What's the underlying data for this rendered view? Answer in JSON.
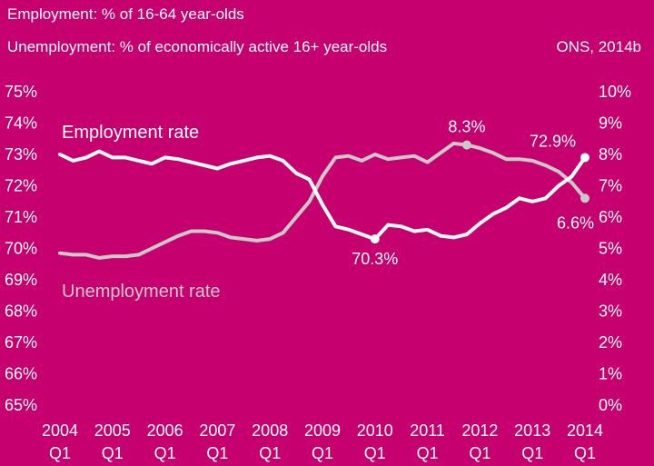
{
  "header": {
    "line1": "Employment: % of 16-64 year-olds",
    "line2": "Unemployment: % of economically active 16+ year-olds",
    "source": "ONS, 2014b"
  },
  "colors": {
    "background": "#c6006f",
    "employment": "#ffffff",
    "unemployment": "#c9c9c9",
    "text": "#ffffff"
  },
  "chart_data": {
    "type": "line",
    "title": "",
    "left_axis": {
      "range": [
        65,
        75
      ],
      "ticks": [
        "65%",
        "66%",
        "67%",
        "68%",
        "69%",
        "70%",
        "71%",
        "72%",
        "73%",
        "74%",
        "75%"
      ]
    },
    "right_axis": {
      "range": [
        0,
        10
      ],
      "ticks": [
        "0%",
        "1%",
        "2%",
        "3%",
        "4%",
        "5%",
        "6%",
        "7%",
        "8%",
        "9%",
        "10%"
      ]
    },
    "x_range": [
      2004.0,
      2014.0
    ],
    "x_ticks": [
      {
        "year": "2004",
        "q": "Q1"
      },
      {
        "year": "2005",
        "q": "Q1"
      },
      {
        "year": "2006",
        "q": "Q1"
      },
      {
        "year": "2007",
        "q": "Q1"
      },
      {
        "year": "2008",
        "q": "Q1"
      },
      {
        "year": "2009",
        "q": "Q1"
      },
      {
        "year": "2010",
        "q": "Q1"
      },
      {
        "year": "2011",
        "q": "Q1"
      },
      {
        "year": "2012",
        "q": "Q1"
      },
      {
        "year": "2013",
        "q": "Q1"
      },
      {
        "year": "2014",
        "q": "Q1"
      }
    ],
    "grid": false,
    "series": [
      {
        "name": "Employment rate",
        "axis": "left",
        "x": [
          2004.0,
          2004.25,
          2004.5,
          2004.75,
          2005.0,
          2005.25,
          2005.5,
          2005.75,
          2006.0,
          2006.25,
          2006.5,
          2006.75,
          2007.0,
          2007.25,
          2007.5,
          2007.75,
          2008.0,
          2008.25,
          2008.5,
          2008.75,
          2009.0,
          2009.25,
          2009.5,
          2009.75,
          2010.0,
          2010.25,
          2010.5,
          2010.75,
          2011.0,
          2011.25,
          2011.5,
          2011.75,
          2012.0,
          2012.25,
          2012.5,
          2012.75,
          2013.0,
          2013.25,
          2013.5,
          2013.75,
          2014.0
        ],
        "values": [
          73.0,
          72.8,
          72.9,
          73.1,
          72.9,
          72.9,
          72.8,
          72.7,
          72.9,
          72.85,
          72.75,
          72.65,
          72.55,
          72.7,
          72.8,
          72.9,
          72.95,
          72.8,
          72.4,
          72.2,
          71.4,
          70.7,
          70.6,
          70.45,
          70.3,
          70.75,
          70.7,
          70.55,
          70.6,
          70.4,
          70.35,
          70.45,
          70.8,
          71.1,
          71.3,
          71.6,
          71.5,
          71.6,
          72.0,
          72.3,
          72.9
        ]
      },
      {
        "name": "Unemployment rate",
        "axis": "right",
        "x": [
          2004.0,
          2004.25,
          2004.5,
          2004.75,
          2005.0,
          2005.25,
          2005.5,
          2005.75,
          2006.0,
          2006.25,
          2006.5,
          2006.75,
          2007.0,
          2007.25,
          2007.5,
          2007.75,
          2008.0,
          2008.25,
          2008.5,
          2008.75,
          2009.0,
          2009.25,
          2009.5,
          2009.75,
          2010.0,
          2010.25,
          2010.5,
          2010.75,
          2011.0,
          2011.25,
          2011.5,
          2011.75,
          2012.0,
          2012.25,
          2012.5,
          2012.75,
          2013.0,
          2013.25,
          2013.5,
          2013.75,
          2014.0
        ],
        "values": [
          4.85,
          4.8,
          4.8,
          4.7,
          4.75,
          4.75,
          4.8,
          5.0,
          5.2,
          5.4,
          5.55,
          5.55,
          5.5,
          5.35,
          5.3,
          5.25,
          5.3,
          5.5,
          6.0,
          6.5,
          7.3,
          7.9,
          7.95,
          7.8,
          8.0,
          7.85,
          7.9,
          7.95,
          7.75,
          8.05,
          8.35,
          8.3,
          8.2,
          8.05,
          7.85,
          7.85,
          7.8,
          7.65,
          7.45,
          7.1,
          6.6
        ]
      }
    ],
    "series_labels": {
      "employment": "Employment rate",
      "unemployment": "Unemployment rate"
    },
    "annotations": [
      {
        "label": "70.3%",
        "series": "Employment rate",
        "x": 2010.0,
        "y": 70.3
      },
      {
        "label": "72.9%",
        "series": "Employment rate",
        "x": 2014.0,
        "y": 72.9
      },
      {
        "label": "8.3%",
        "series": "Unemployment rate",
        "x": 2011.75,
        "y": 8.3
      },
      {
        "label": "6.6%",
        "series": "Unemployment rate",
        "x": 2014.0,
        "y": 6.6
      }
    ]
  }
}
